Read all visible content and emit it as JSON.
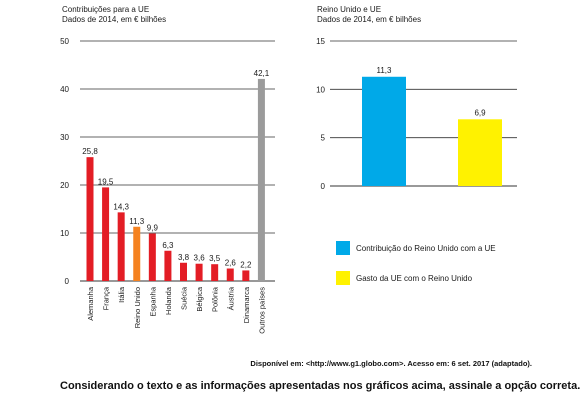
{
  "chart_data": [
    {
      "type": "bar",
      "title": "Contribuições para a UE",
      "subtitle": "Dados de 2014, em € bilhões",
      "categories": [
        "Alemanha",
        "França",
        "Itália",
        "Reino Unido",
        "Espanha",
        "Holanda",
        "Suécia",
        "Bélgica",
        "Polônia",
        "Áustria",
        "Dinamarca",
        "Outros países"
      ],
      "values": [
        25.8,
        19.5,
        14.3,
        11.3,
        9.9,
        6.3,
        3.8,
        3.6,
        3.5,
        2.6,
        2.2,
        42.1
      ],
      "value_labels": [
        "25,8",
        "19,5",
        "14,3",
        "11,3",
        "9,9",
        "6,3",
        "3,8",
        "3,6",
        "3,5",
        "2,6",
        "2,2",
        "42,1"
      ],
      "colors": [
        "#e31d25",
        "#e31d25",
        "#e31d25",
        "#f58220",
        "#e31d25",
        "#e31d25",
        "#e31d25",
        "#e31d25",
        "#e31d25",
        "#e31d25",
        "#e31d25",
        "#9b9b9b"
      ],
      "ylim": [
        0,
        50
      ],
      "yticks": [
        0,
        10,
        20,
        30,
        40,
        50
      ],
      "grid": true
    },
    {
      "type": "bar",
      "title": "Reino Unido e UE",
      "subtitle": "Dados de 2014, em € bilhões",
      "categories": [
        "Contribuição do Reino Unido com a UE",
        "Gasto da UE com o Reino Unido"
      ],
      "values": [
        11.3,
        6.9
      ],
      "value_labels": [
        "11,3",
        "6,9"
      ],
      "colors": [
        "#00a9e8",
        "#fff200"
      ],
      "ylim": [
        0,
        15
      ],
      "yticks": [
        0,
        5,
        10,
        15
      ],
      "grid": true,
      "legend": [
        {
          "label": "Contribuição do Reino Unido com a UE",
          "color": "#00a9e8"
        },
        {
          "label": "Gasto da UE com o Reino Unido",
          "color": "#fff200"
        }
      ],
      "legend_position": "bottom"
    }
  ],
  "source_text": "Disponível em: <http://www.g1.globo.com>. Acesso em: 6 set. 2017 (adaptado).",
  "question_text": "Considerando o texto e as informações apresentadas nos gráficos acima, assinale a opção correta."
}
